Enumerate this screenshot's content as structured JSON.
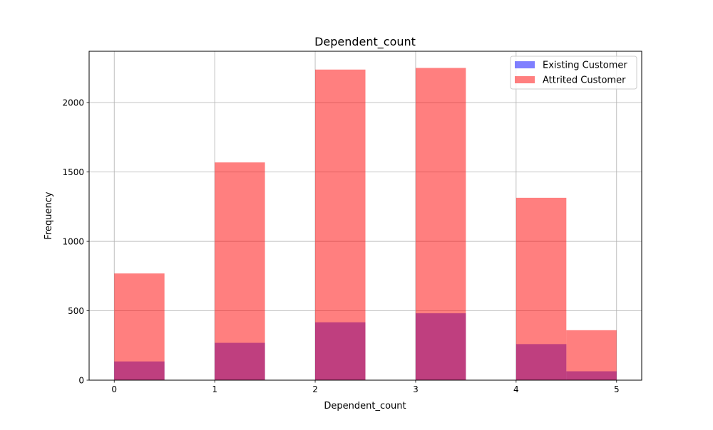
{
  "chart_data": {
    "type": "bar",
    "title": "Dependent_count",
    "xlabel": "Dependent_count",
    "ylabel": "Frequency",
    "xlim": [
      -0.25,
      5.25
    ],
    "ylim": [
      0,
      2370
    ],
    "x_ticks": [
      0,
      1,
      2,
      3,
      4,
      5
    ],
    "y_ticks": [
      0,
      500,
      1000,
      1500,
      2000
    ],
    "grid": true,
    "legend_position": "top-right",
    "bin_edges": [
      0,
      0.5,
      1,
      1.5,
      2,
      2.5,
      3,
      3.5,
      4,
      4.5,
      5
    ],
    "series": [
      {
        "name": "Existing Customer",
        "color": "#0000ff",
        "opacity": 0.5,
        "values": [
          135,
          0,
          269,
          0,
          417,
          0,
          482,
          0,
          260,
          64
        ]
      },
      {
        "name": "Attrited Customer",
        "color": "#ff0000",
        "opacity": 0.5,
        "values": [
          769,
          0,
          1569,
          0,
          2238,
          0,
          2250,
          0,
          1314,
          360
        ]
      }
    ]
  }
}
